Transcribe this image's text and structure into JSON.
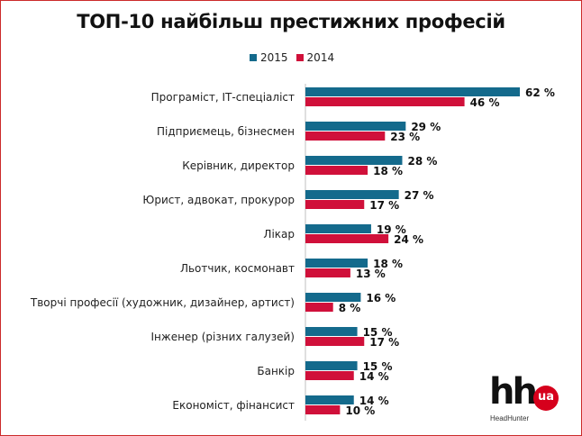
{
  "chart_data": {
    "type": "bar",
    "orientation": "horizontal",
    "title": "ТОП-10 найбільш престижних професій",
    "categories": [
      "Програміст, ІТ-спеціаліст",
      "Підприємець, бізнесмен",
      "Керівник, директор",
      "Юрист, адвокат, прокурор",
      "Лікар",
      "Льотчик, космонавт",
      "Творчі професії (художник, дизайнер, артист)",
      "Інженер (різних галузей)",
      "Банкір",
      "Економіст, фінансист"
    ],
    "series": [
      {
        "name": "2015",
        "color": "#146a8c",
        "values": [
          62,
          29,
          28,
          27,
          19,
          18,
          16,
          15,
          15,
          14
        ]
      },
      {
        "name": "2014",
        "color": "#d0103a",
        "values": [
          46,
          23,
          18,
          17,
          24,
          13,
          8,
          17,
          14,
          10
        ]
      }
    ],
    "value_suffix": " %",
    "xlim": [
      0,
      62
    ],
    "legend_position": "top",
    "grid": false
  },
  "logo": {
    "mark": "hh",
    "badge": "ua",
    "caption": "HeadHunter"
  }
}
